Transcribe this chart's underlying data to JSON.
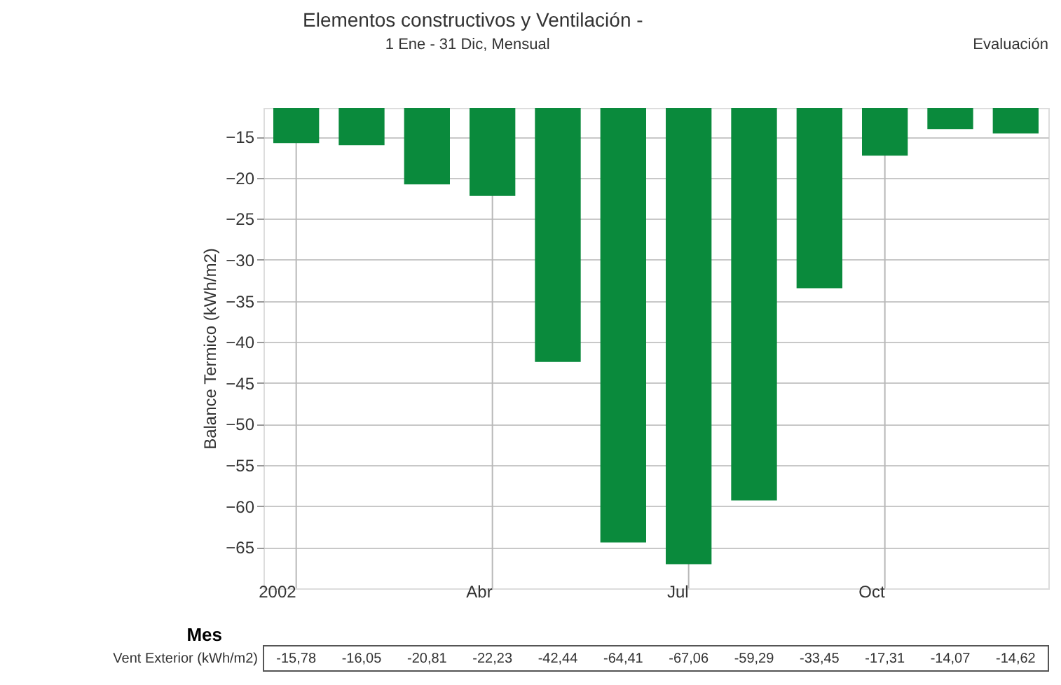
{
  "chart_data": {
    "type": "bar",
    "title": "Elementos constructivos y Ventilación -",
    "subtitle": "1 Ene - 31 Dic, Mensual",
    "annotations": [
      "Evaluación"
    ],
    "xlabel": "Mes",
    "ylabel": "Balance Termico (kWh/m2)",
    "categories": [
      "2002",
      null,
      null,
      "Abr",
      null,
      null,
      "Jul",
      null,
      null,
      "Oct",
      null,
      null
    ],
    "series": [
      {
        "name": "Vent Exterior (kWh/m2)",
        "color": "#0a8a3c",
        "values": [
          -15.78,
          -16.05,
          -20.81,
          -22.23,
          -42.44,
          -64.41,
          -67.06,
          -59.29,
          -33.45,
          -17.31,
          -14.07,
          -14.62
        ],
        "value_labels": [
          "-15,78",
          "-16,05",
          "-20,81",
          "-22,23",
          "-42,44",
          "-64,41",
          "-67,06",
          "-59,29",
          "-33,45",
          "-17,31",
          "-14,07",
          "-14,62"
        ]
      }
    ],
    "ylim": [
      -70,
      -11.5
    ],
    "yticks": [
      -15,
      -20,
      -25,
      -30,
      -35,
      -40,
      -45,
      -50,
      -55,
      -60,
      -65
    ],
    "grid": true
  }
}
